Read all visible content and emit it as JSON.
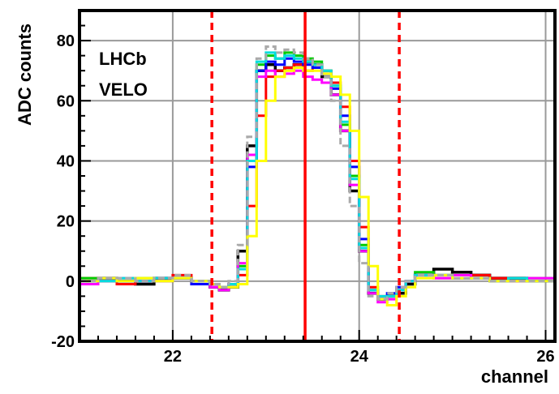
{
  "chart_data": {
    "type": "line",
    "title": "",
    "xlabel": "channel",
    "ylabel": "ADC counts",
    "xlim": [
      21.0,
      26.1
    ],
    "ylim": [
      -20,
      90
    ],
    "xticks_major": [
      22,
      24,
      26
    ],
    "yticks_major": [
      -20,
      0,
      20,
      40,
      60,
      80
    ],
    "annotations": [
      "LHCb",
      "VELO"
    ],
    "grid": true,
    "step": true,
    "vlines": [
      {
        "x": 22.42,
        "style": "dashed",
        "color": "#ff0000"
      },
      {
        "x": 23.42,
        "style": "solid",
        "color": "#ff0000"
      },
      {
        "x": 24.43,
        "style": "dashed",
        "color": "#ff0000"
      }
    ],
    "x": [
      21.0,
      21.2,
      21.4,
      21.6,
      21.8,
      22.0,
      22.2,
      22.4,
      22.5,
      22.6,
      22.7,
      22.8,
      22.9,
      23.0,
      23.1,
      23.2,
      23.3,
      23.4,
      23.5,
      23.6,
      23.7,
      23.8,
      23.9,
      24.0,
      24.1,
      24.2,
      24.3,
      24.4,
      24.5,
      24.6,
      24.8,
      25.0,
      25.2,
      25.4,
      25.6,
      25.8,
      26.1
    ],
    "series": [
      {
        "color": "#000000",
        "values": [
          0,
          1,
          0,
          -1,
          1,
          1,
          0,
          -2,
          -3,
          -2,
          10,
          45,
          70,
          72,
          70,
          71,
          72,
          73,
          72,
          68,
          62,
          50,
          30,
          10,
          -4,
          -6,
          -5,
          -4,
          -1,
          2,
          4,
          3,
          2,
          1,
          1,
          0,
          0
        ]
      },
      {
        "color": "#ff0000",
        "values": [
          1,
          0,
          -1,
          0,
          1,
          2,
          0,
          -2,
          -2,
          -1,
          2,
          25,
          55,
          68,
          70,
          71,
          72,
          70,
          71,
          70,
          66,
          58,
          40,
          18,
          -2,
          -5,
          -5,
          -3,
          0,
          2,
          1,
          1,
          2,
          1,
          0,
          0,
          0
        ]
      },
      {
        "color": "#00cc00",
        "values": [
          1,
          0,
          0,
          1,
          0,
          1,
          0,
          -1,
          -2,
          -1,
          5,
          40,
          72,
          75,
          74,
          76,
          75,
          74,
          73,
          70,
          65,
          52,
          35,
          12,
          -3,
          -6,
          -5,
          -3,
          0,
          3,
          2,
          1,
          1,
          0,
          0,
          1,
          0
        ]
      },
      {
        "color": "#0000ff",
        "values": [
          0,
          1,
          0,
          0,
          1,
          1,
          -1,
          -2,
          -2,
          -1,
          4,
          38,
          70,
          73,
          72,
          74,
          73,
          72,
          71,
          69,
          64,
          55,
          38,
          14,
          -3,
          -6,
          -4,
          -2,
          0,
          2,
          2,
          1,
          1,
          0,
          0,
          0,
          0
        ]
      },
      {
        "color": "#ff00ff",
        "values": [
          -1,
          0,
          1,
          0,
          0,
          1,
          0,
          -2,
          -3,
          -1,
          6,
          42,
          68,
          70,
          68,
          69,
          70,
          68,
          67,
          66,
          62,
          50,
          32,
          10,
          -4,
          -7,
          -6,
          -3,
          0,
          2,
          1,
          2,
          1,
          0,
          0,
          1,
          0
        ]
      },
      {
        "color": "#00dddd",
        "values": [
          0,
          0,
          1,
          0,
          1,
          1,
          0,
          -1,
          -2,
          -1,
          4,
          40,
          73,
          76,
          74,
          75,
          74,
          73,
          72,
          70,
          65,
          53,
          34,
          11,
          -3,
          -5,
          -5,
          -3,
          0,
          2,
          2,
          1,
          1,
          0,
          1,
          0,
          0
        ]
      },
      {
        "color": "#ffff00",
        "values": [
          0,
          1,
          0,
          1,
          0,
          1,
          0,
          -1,
          -2,
          -2,
          -1,
          15,
          40,
          60,
          68,
          70,
          71,
          70,
          70,
          69,
          68,
          62,
          50,
          28,
          5,
          -6,
          -8,
          -5,
          -2,
          1,
          2,
          1,
          1,
          0,
          0,
          0,
          0
        ]
      },
      {
        "color": "#aaaaaa",
        "values": [
          0,
          1,
          1,
          0,
          1,
          2,
          0,
          -1,
          -2,
          0,
          12,
          48,
          74,
          78,
          76,
          77,
          76,
          74,
          72,
          68,
          60,
          45,
          25,
          6,
          -5,
          -6,
          -4,
          -2,
          0,
          2,
          2,
          1,
          1,
          0,
          0,
          0,
          0
        ]
      }
    ]
  }
}
